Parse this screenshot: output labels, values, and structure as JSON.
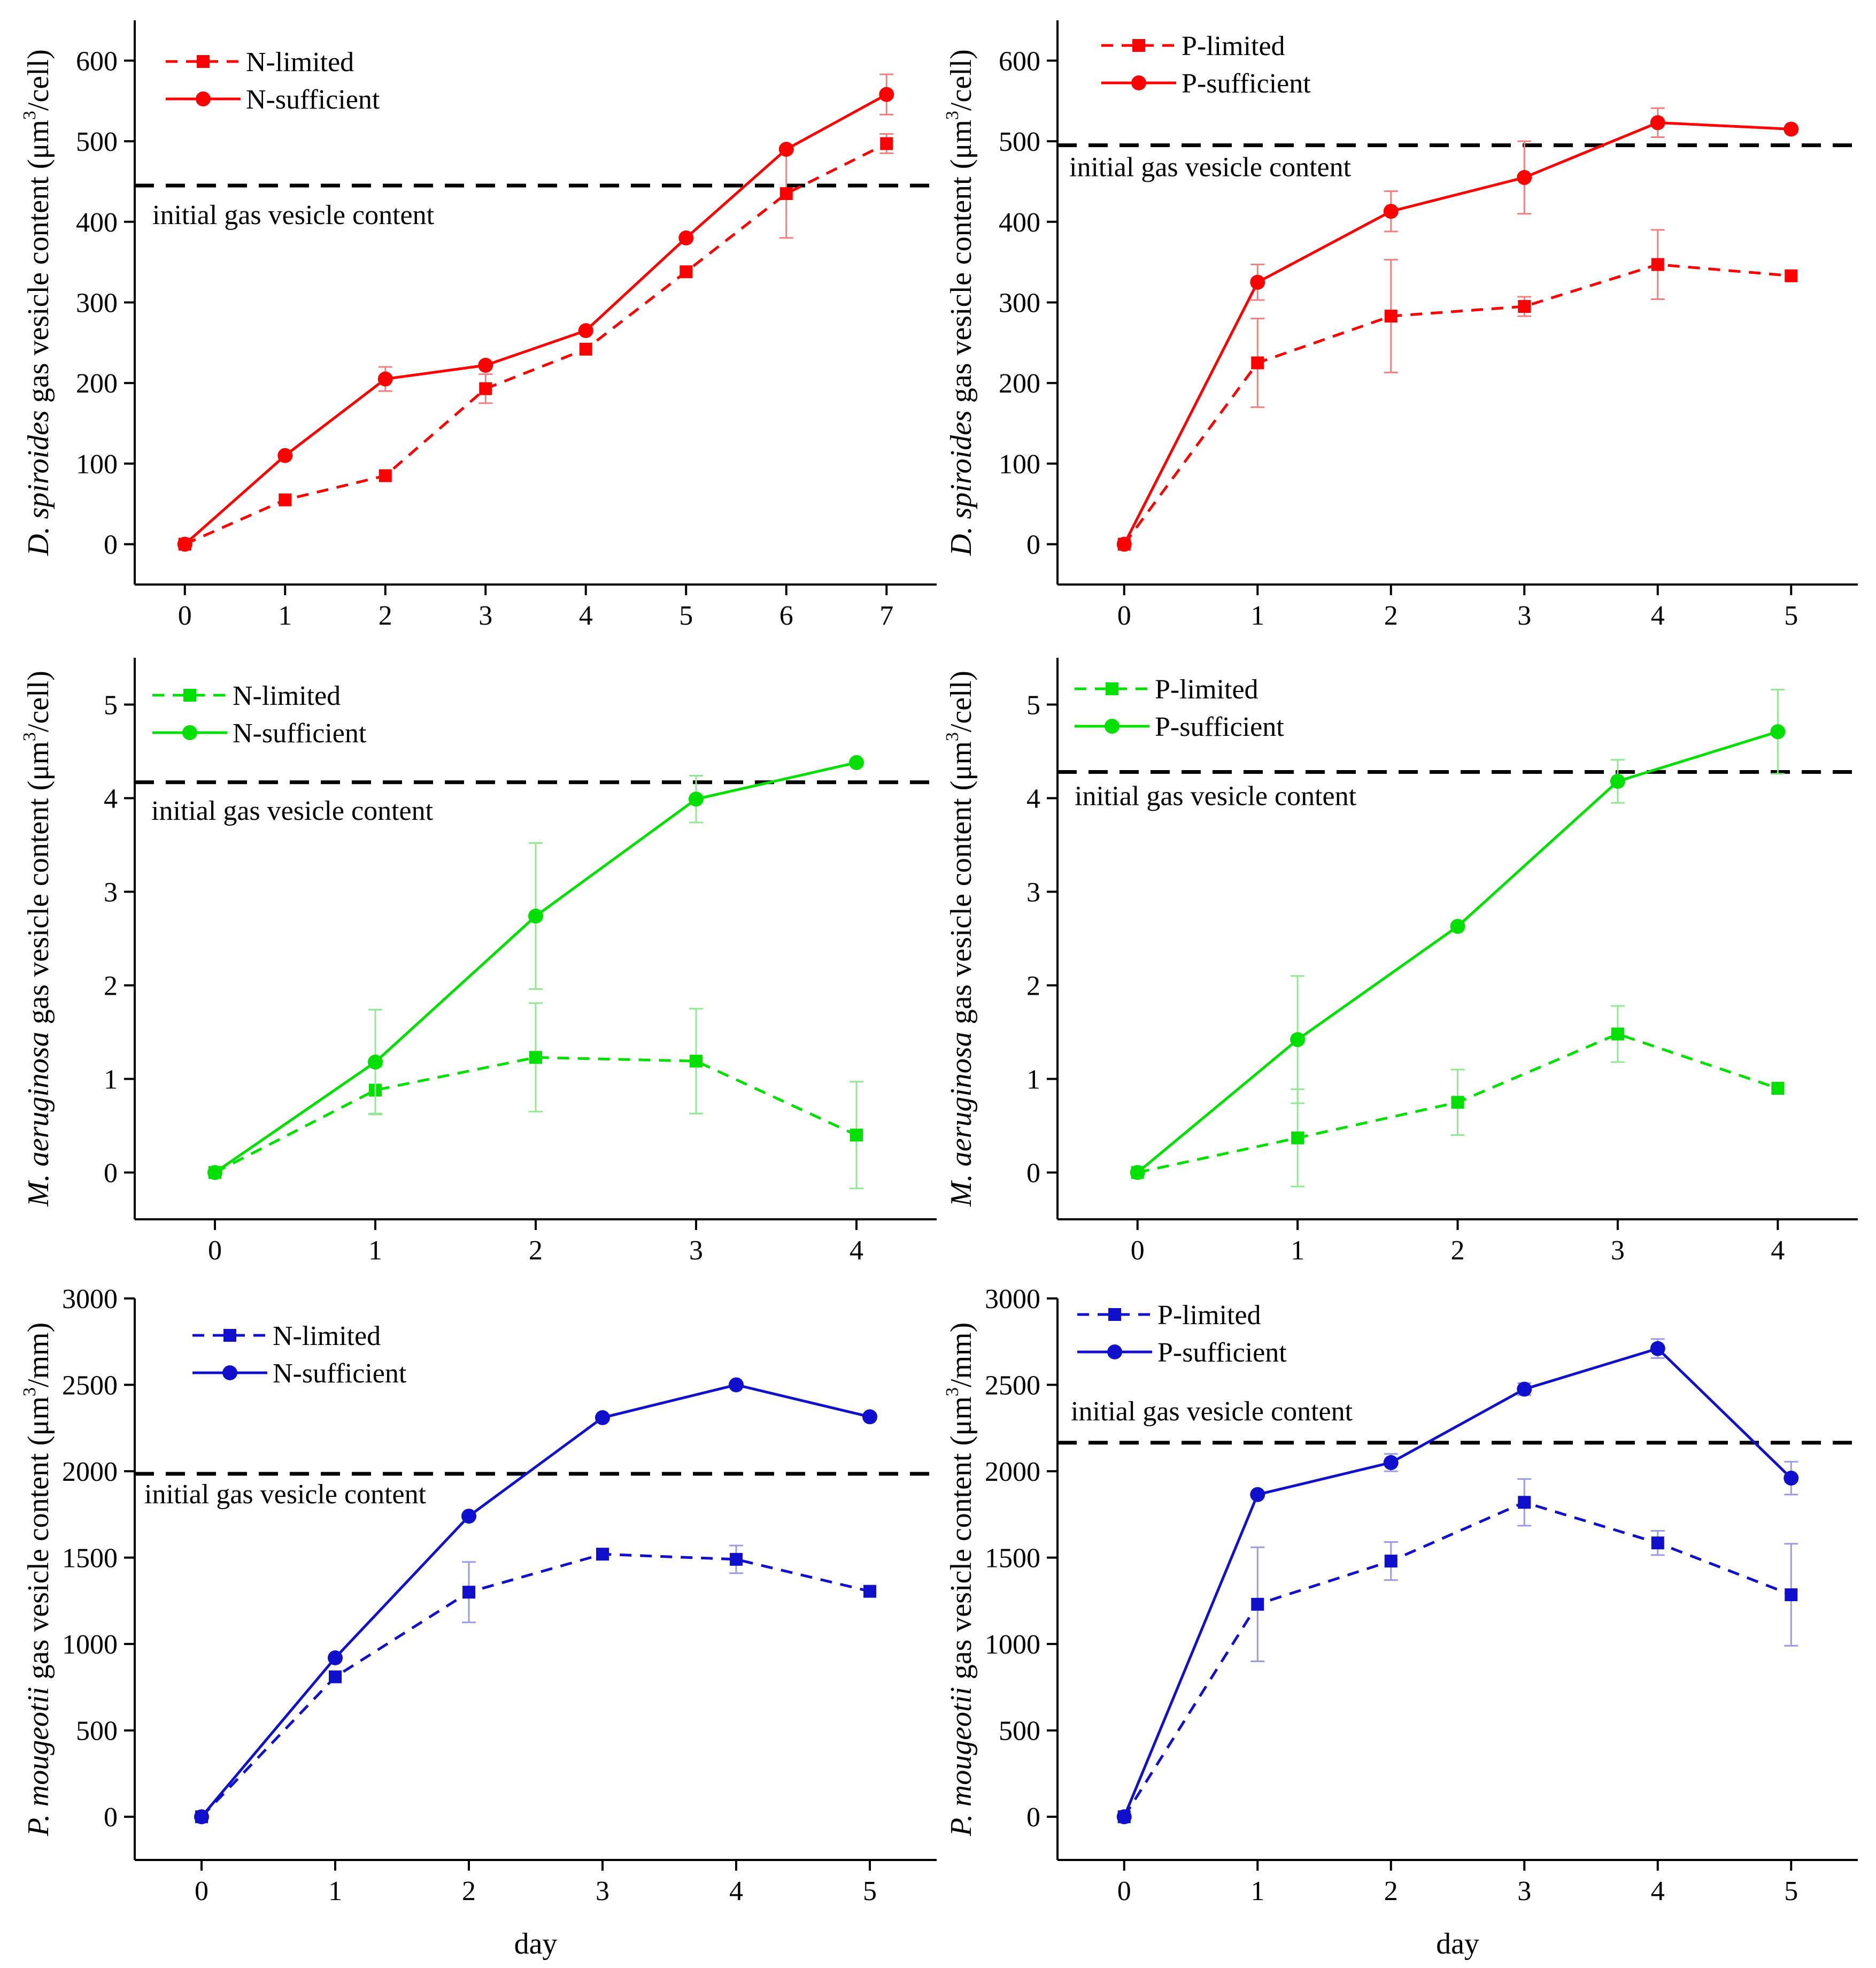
{
  "colors": {
    "red": "#ff0000",
    "green": "#00e000",
    "blue": "#1010cc",
    "red_err": "#f08080",
    "green_err": "#90e890",
    "blue_err": "#9a9ae6",
    "axis": "#000000"
  },
  "initial_label": "initial  gas vesicle content",
  "chart_data": [
    {
      "id": "A",
      "type": "line",
      "title": "",
      "color": "red",
      "ylabel_species": "D. spiroides",
      "ylabel_rest": " gas vesicle content (μm",
      "ylabel_sup": "3",
      "ylabel_unit": "/cell)",
      "xlabel": "",
      "xlim": [
        -0.5,
        7.5
      ],
      "ylim": [
        -50,
        650
      ],
      "xticks": [
        0,
        1,
        2,
        3,
        4,
        5,
        6,
        7
      ],
      "yticks": [
        0,
        100,
        200,
        300,
        400,
        500,
        600
      ],
      "initial": 445,
      "series": [
        {
          "name": "N-limited",
          "style": "dashed",
          "marker": "square",
          "x": [
            0,
            1,
            2,
            3,
            4,
            5,
            6,
            7
          ],
          "y": [
            0,
            55,
            85,
            193,
            242,
            338,
            435,
            497
          ],
          "err": [
            0,
            0,
            0,
            18,
            0,
            0,
            55,
            12
          ]
        },
        {
          "name": "N-sufficient",
          "style": "solid",
          "marker": "circle",
          "x": [
            0,
            1,
            2,
            3,
            4,
            5,
            6,
            7
          ],
          "y": [
            0,
            110,
            205,
            222,
            265,
            380,
            490,
            558
          ],
          "err": [
            0,
            0,
            15,
            0,
            0,
            0,
            0,
            25
          ]
        }
      ]
    },
    {
      "id": "B",
      "type": "line",
      "title": "",
      "color": "red",
      "ylabel_species": "D. spiroides",
      "ylabel_rest": " gas vesicle content (μm",
      "ylabel_sup": "3",
      "ylabel_unit": "/cell)",
      "xlabel": "",
      "xlim": [
        -0.5,
        5.5
      ],
      "ylim": [
        -50,
        650
      ],
      "xticks": [
        0,
        1,
        2,
        3,
        4,
        5
      ],
      "yticks": [
        0,
        100,
        200,
        300,
        400,
        500,
        600
      ],
      "initial": 495,
      "series": [
        {
          "name": "P-limited",
          "style": "dashed",
          "marker": "square",
          "x": [
            0,
            1,
            2,
            3,
            4,
            5
          ],
          "y": [
            0,
            225,
            283,
            295,
            347,
            333
          ],
          "err": [
            0,
            55,
            70,
            12,
            43,
            0
          ]
        },
        {
          "name": "P-sufficient",
          "style": "solid",
          "marker": "circle",
          "x": [
            0,
            1,
            2,
            3,
            4,
            5
          ],
          "y": [
            0,
            325,
            413,
            455,
            523,
            515
          ],
          "err": [
            0,
            22,
            25,
            45,
            18,
            0
          ]
        }
      ]
    },
    {
      "id": "C",
      "type": "line",
      "title": "",
      "color": "green",
      "ylabel_species": "M. aeruginosa",
      "ylabel_rest": " gas vesicle content (μm",
      "ylabel_sup": "3",
      "ylabel_unit": "/cell)",
      "xlabel": "",
      "xlim": [
        -0.5,
        4.5
      ],
      "ylim": [
        -0.5,
        5.5
      ],
      "xticks": [
        0,
        1,
        2,
        3,
        4
      ],
      "yticks": [
        0,
        1,
        2,
        3,
        4,
        5
      ],
      "initial": 4.17,
      "series": [
        {
          "name": "N-limited",
          "style": "dashed",
          "marker": "square",
          "x": [
            0,
            1,
            2,
            3,
            4
          ],
          "y": [
            0,
            0.88,
            1.23,
            1.19,
            0.4
          ],
          "err": [
            0,
            0.25,
            0.58,
            0.56,
            0.57
          ]
        },
        {
          "name": "N-sufficient",
          "style": "solid",
          "marker": "circle",
          "x": [
            0,
            1,
            2,
            3,
            4
          ],
          "y": [
            0,
            1.18,
            2.74,
            3.99,
            4.38
          ],
          "err": [
            0,
            0.56,
            0.78,
            0.25,
            0
          ]
        }
      ]
    },
    {
      "id": "D",
      "type": "line",
      "title": "",
      "color": "green",
      "ylabel_species": "M. aeruginosa",
      "ylabel_rest": " gas vesicle content (μm",
      "ylabel_sup": "3",
      "ylabel_unit": "/cell)",
      "xlabel": "",
      "xlim": [
        -0.5,
        4.5
      ],
      "ylim": [
        -0.5,
        5.5
      ],
      "xticks": [
        0,
        1,
        2,
        3,
        4
      ],
      "yticks": [
        0,
        1,
        2,
        3,
        4,
        5
      ],
      "initial": 4.28,
      "series": [
        {
          "name": "P-limited",
          "style": "dashed",
          "marker": "square",
          "x": [
            0,
            1,
            2,
            3,
            4
          ],
          "y": [
            0,
            0.37,
            0.75,
            1.48,
            0.9
          ],
          "err": [
            0,
            0.52,
            0.35,
            0.3,
            0
          ]
        },
        {
          "name": "P-sufficient",
          "style": "solid",
          "marker": "circle",
          "x": [
            0,
            1,
            2,
            3,
            4
          ],
          "y": [
            0,
            1.42,
            2.63,
            4.18,
            4.71
          ],
          "err": [
            0,
            0.68,
            0,
            0.23,
            0.45
          ]
        }
      ]
    },
    {
      "id": "E",
      "type": "line",
      "title": "",
      "color": "blue",
      "ylabel_species": "P. mougeotii",
      "ylabel_rest": " gas vesicle content (μm",
      "ylabel_sup": "3",
      "ylabel_unit": "/mm)",
      "xlabel": "day",
      "xlim": [
        -0.5,
        5.5
      ],
      "ylim": [
        -250,
        3000
      ],
      "xticks": [
        0,
        1,
        2,
        3,
        4,
        5
      ],
      "yticks": [
        0,
        500,
        1000,
        1500,
        2000,
        2500,
        3000
      ],
      "initial": 1985,
      "series": [
        {
          "name": "N-limited",
          "style": "dashed",
          "marker": "square",
          "x": [
            0,
            1,
            2,
            3,
            4,
            5
          ],
          "y": [
            0,
            810,
            1300,
            1520,
            1490,
            1305
          ],
          "err": [
            0,
            0,
            175,
            0,
            80,
            0
          ]
        },
        {
          "name": "N-sufficient",
          "style": "solid",
          "marker": "circle",
          "x": [
            0,
            1,
            2,
            3,
            4,
            5
          ],
          "y": [
            0,
            920,
            1740,
            2310,
            2500,
            2315
          ],
          "err": [
            0,
            0,
            0,
            0,
            0,
            0
          ]
        }
      ]
    },
    {
      "id": "F",
      "type": "line",
      "title": "",
      "color": "blue",
      "ylabel_species": "P. mougeotii",
      "ylabel_rest": " gas vesicle content (μm",
      "ylabel_sup": "3",
      "ylabel_unit": "/mm)",
      "xlabel": "day",
      "xlim": [
        -0.5,
        5.5
      ],
      "ylim": [
        -250,
        3000
      ],
      "xticks": [
        0,
        1,
        2,
        3,
        4,
        5
      ],
      "yticks": [
        0,
        500,
        1000,
        1500,
        2000,
        2500,
        3000
      ],
      "initial": 2165,
      "series": [
        {
          "name": "P-limited",
          "style": "dashed",
          "marker": "square",
          "x": [
            0,
            1,
            2,
            3,
            4,
            5
          ],
          "y": [
            0,
            1230,
            1480,
            1820,
            1585,
            1285
          ],
          "err": [
            0,
            330,
            110,
            135,
            70,
            295
          ]
        },
        {
          "name": "P-sufficient",
          "style": "solid",
          "marker": "circle",
          "x": [
            0,
            1,
            2,
            3,
            4,
            5
          ],
          "y": [
            0,
            1865,
            2050,
            2475,
            2710,
            1960
          ],
          "err": [
            0,
            0,
            50,
            35,
            55,
            95
          ]
        }
      ]
    }
  ]
}
